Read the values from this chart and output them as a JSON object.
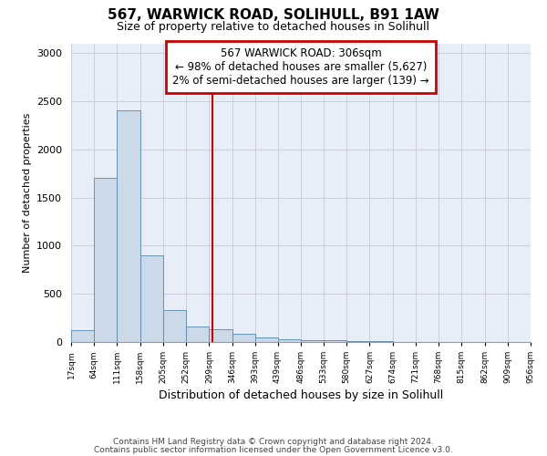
{
  "title": "567, WARWICK ROAD, SOLIHULL, B91 1AW",
  "subtitle": "Size of property relative to detached houses in Solihull",
  "xlabel": "Distribution of detached houses by size in Solihull",
  "ylabel": "Number of detached properties",
  "bar_color": "#ccd9e8",
  "bar_edge_color": "#5588aa",
  "background_color": "#e8eef8",
  "grid_color": "#ccccdd",
  "vline_x": 306,
  "vline_color": "#cc0000",
  "annotation_line1": "567 WARWICK ROAD: 306sqm",
  "annotation_line2": "← 98% of detached houses are smaller (5,627)",
  "annotation_line3": "2% of semi-detached houses are larger (139) →",
  "annotation_box_color": "#cc0000",
  "bin_edges": [
    17,
    64,
    111,
    158,
    205,
    252,
    299,
    346,
    393,
    439,
    486,
    533,
    580,
    627,
    674,
    721,
    768,
    815,
    862,
    909,
    956
  ],
  "bar_heights": [
    125,
    1700,
    2400,
    900,
    330,
    160,
    130,
    85,
    50,
    30,
    20,
    15,
    8,
    5,
    4,
    3,
    2,
    2,
    1,
    1
  ],
  "footer_line1": "Contains HM Land Registry data © Crown copyright and database right 2024.",
  "footer_line2": "Contains public sector information licensed under the Open Government Licence v3.0.",
  "ylim": [
    0,
    3100
  ],
  "yticks": [
    0,
    500,
    1000,
    1500,
    2000,
    2500,
    3000
  ],
  "figsize": [
    6.0,
    5.0
  ],
  "dpi": 100
}
